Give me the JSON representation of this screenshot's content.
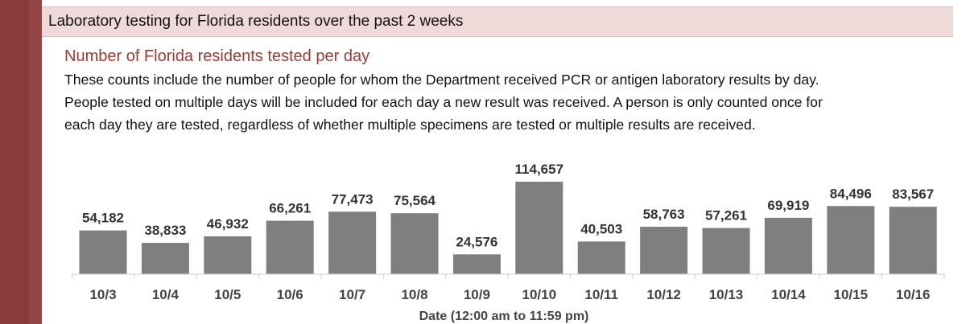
{
  "header": {
    "title": "Laboratory testing for Florida residents over the past 2 weeks"
  },
  "chart_title": "Number of Florida residents tested per day",
  "description": [
    "These counts include the number of people for whom the Department received PCR or antigen laboratory results by day.",
    "People tested on multiple days will be included for each day a new result was received. A person is only counted once for",
    "each day they are tested, regardless of whether multiple specimens are tested or multiple results are received."
  ],
  "colors": {
    "accent": "#8b3a3a",
    "header_band": "#efdada",
    "title": "#9b3b34",
    "bar": "#7f7f7f"
  },
  "chart_data": {
    "type": "bar",
    "title": "Number of Florida residents tested per day",
    "xlabel": "Date (12:00 am to 11:59 pm)",
    "ylabel": "",
    "categories": [
      "10/3",
      "10/4",
      "10/5",
      "10/6",
      "10/7",
      "10/8",
      "10/9",
      "10/10",
      "10/11",
      "10/12",
      "10/13",
      "10/14",
      "10/15",
      "10/16"
    ],
    "values": [
      54182,
      38833,
      46932,
      66261,
      77473,
      75564,
      24576,
      114657,
      40503,
      58763,
      57261,
      69919,
      84496,
      83567
    ],
    "data_labels": [
      "54,182",
      "38,833",
      "46,932",
      "66,261",
      "77,473",
      "75,564",
      "24,576",
      "114,657",
      "40,503",
      "58,763",
      "57,261",
      "69,919",
      "84,496",
      "83,567"
    ],
    "ylim": [
      0,
      114657
    ],
    "grid": false,
    "legend": "none"
  }
}
